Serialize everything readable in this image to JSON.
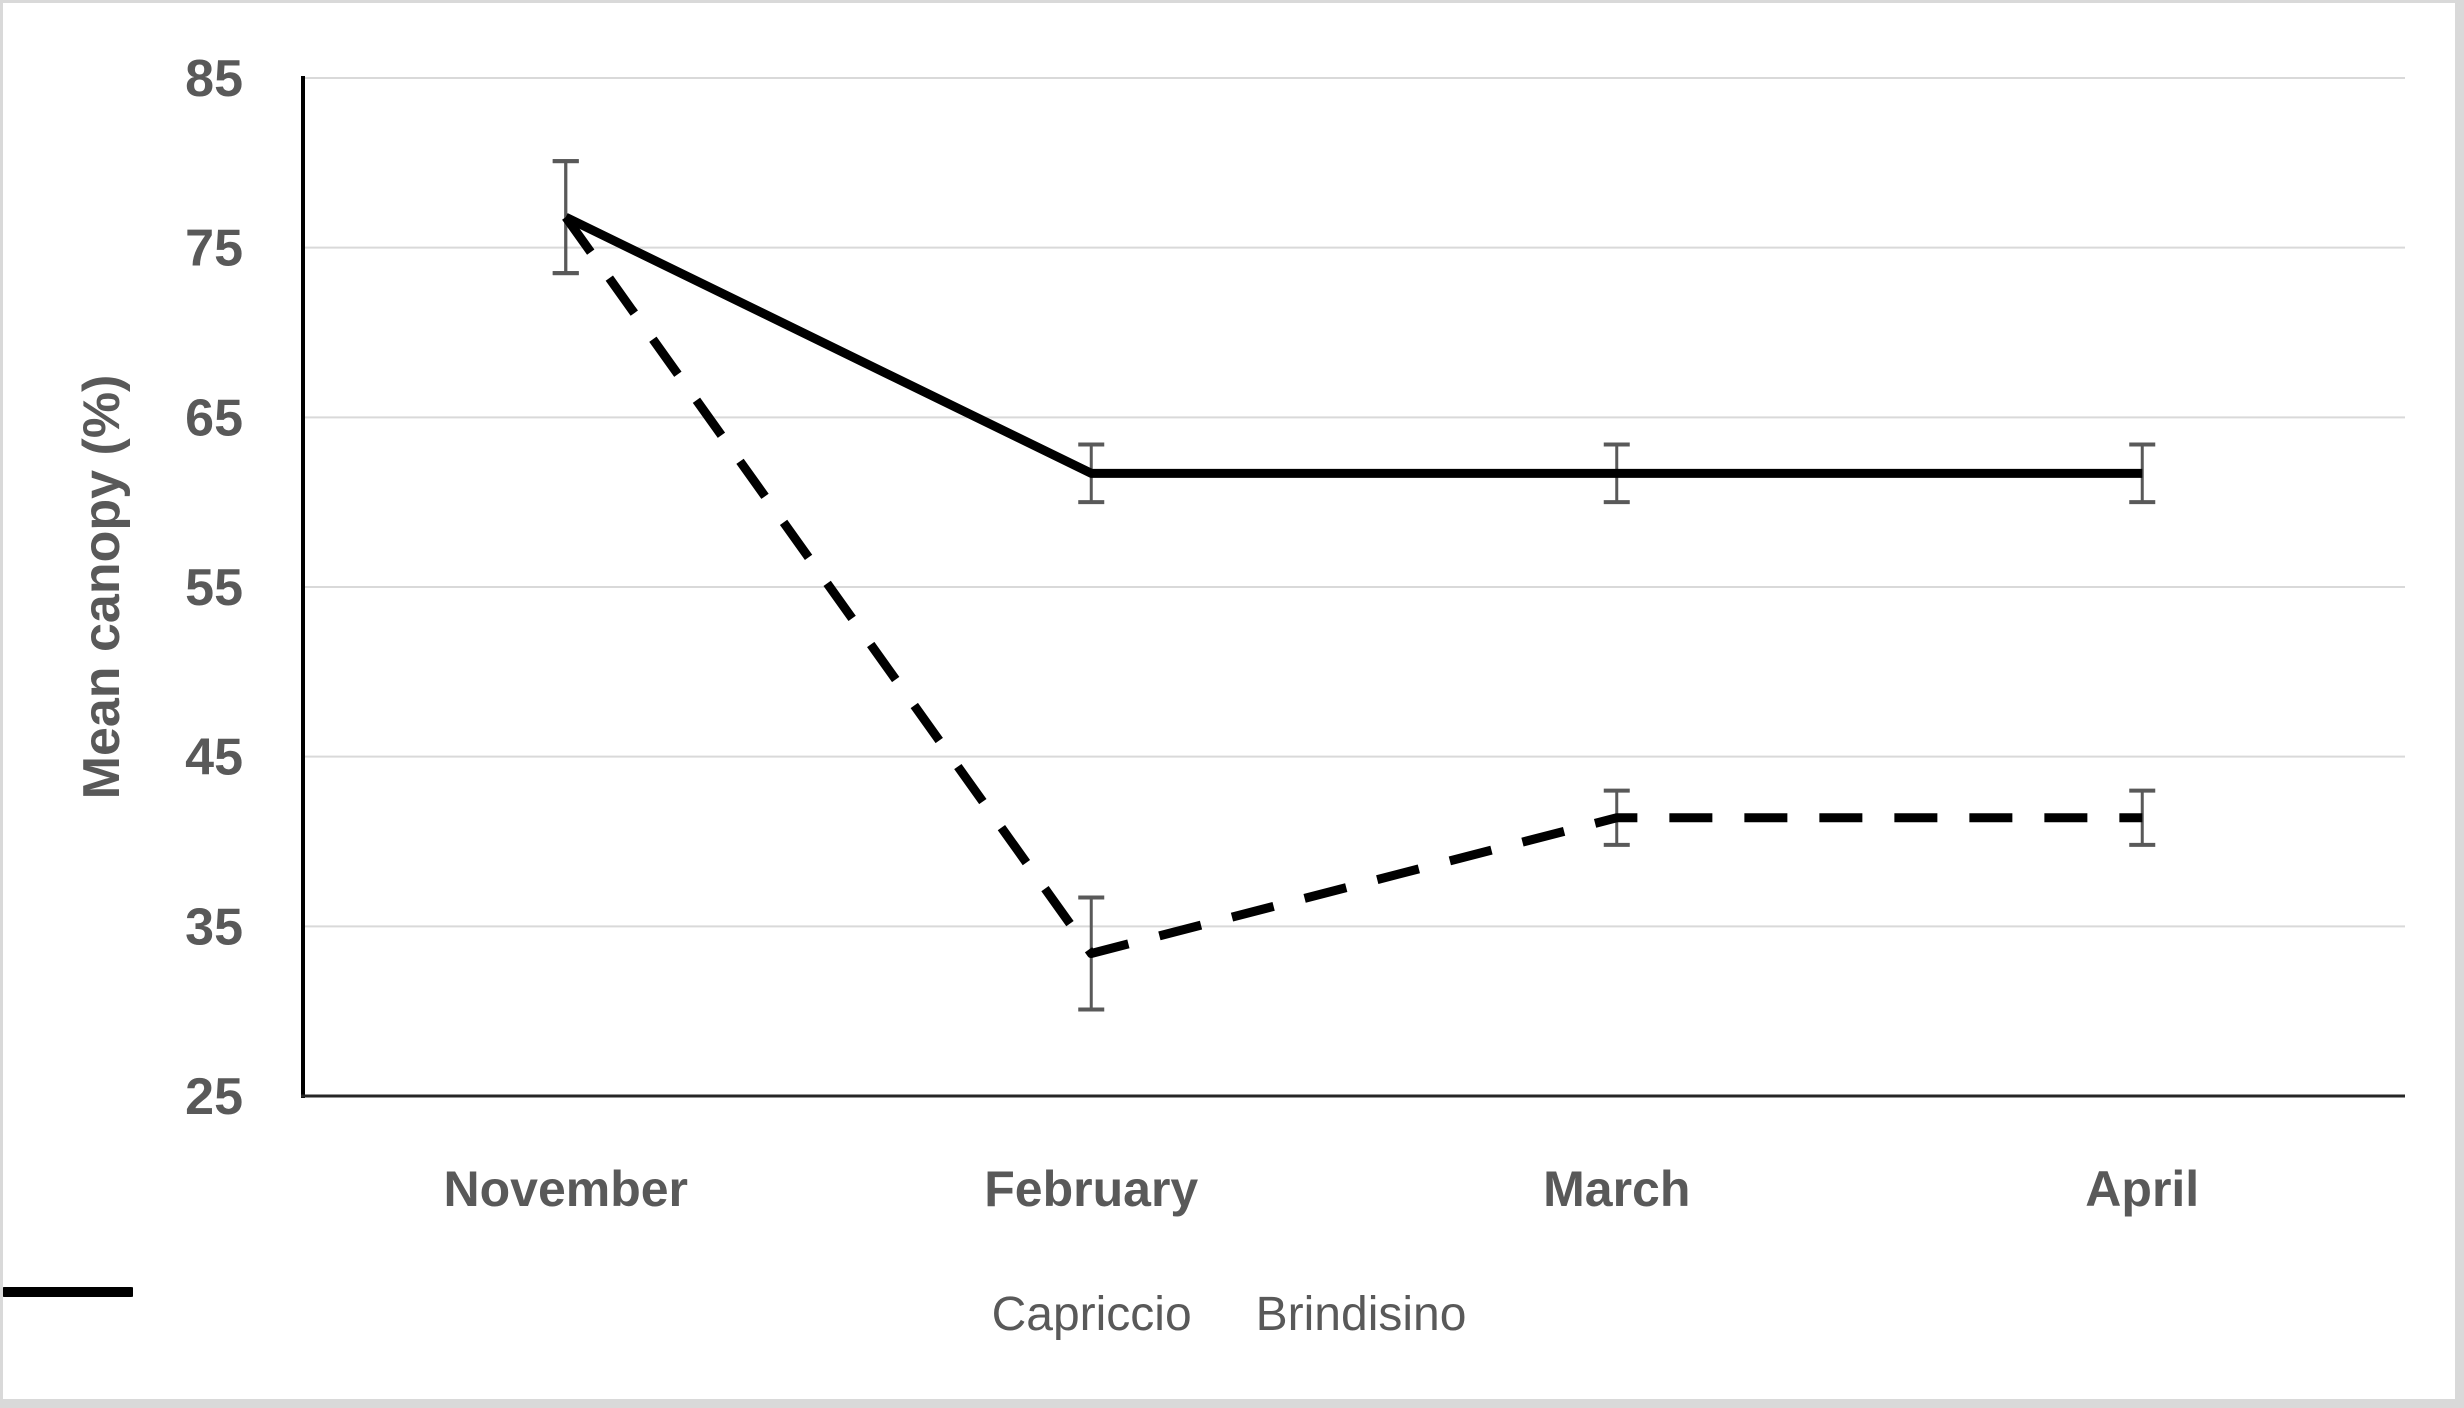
{
  "chart_data": {
    "type": "line",
    "title": "",
    "categories": [
      "November",
      "February",
      "March",
      "April"
    ],
    "series": [
      {
        "name": "Capriccio",
        "line_style": "dashed",
        "color": "#000000",
        "values": [
          76.8,
          33.4,
          41.4,
          41.4
        ],
        "error_bars": [
          3.3,
          3.3,
          1.6,
          1.6
        ]
      },
      {
        "name": "Brindisino",
        "line_style": "solid",
        "color": "#000000",
        "values": [
          76.8,
          61.7,
          61.7,
          61.7
        ],
        "error_bars": [
          3.3,
          1.7,
          1.7,
          1.7
        ]
      }
    ],
    "xlabel": "",
    "ylabel": "Mean canopy (%)",
    "ylim": [
      25,
      85
    ],
    "yticks": [
      25,
      35,
      45,
      55,
      65,
      75,
      85
    ],
    "grid": "horizontal",
    "legend_position": "bottom"
  },
  "colors": {
    "text": "#595959",
    "gridline": "#d9d9d9",
    "y_axis": "#000000",
    "x_axis": "#262626",
    "error_bar": "#595959",
    "series_line": "#000000",
    "frame": "#d9d9d9"
  }
}
